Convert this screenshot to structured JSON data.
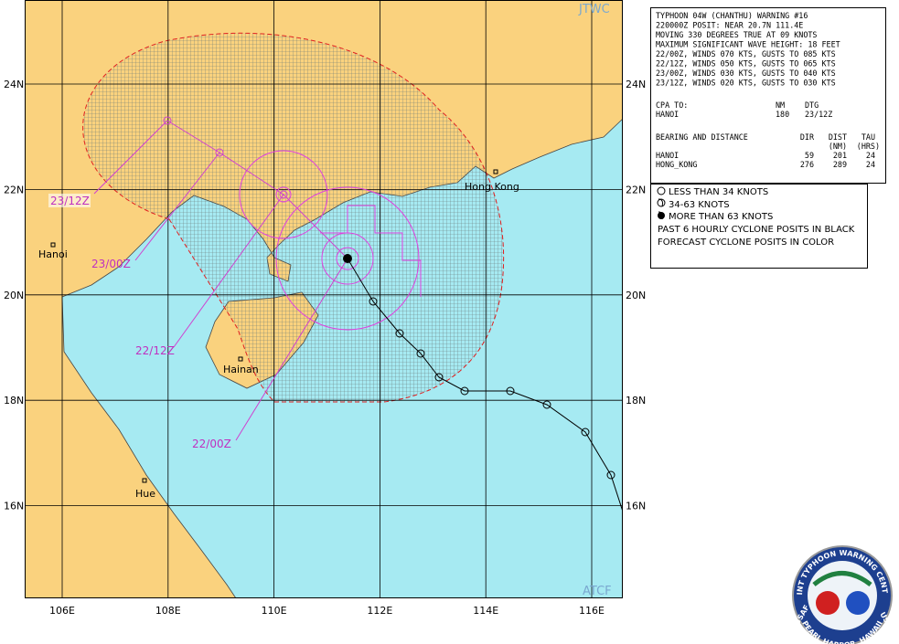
{
  "header": {
    "left_mark": "JTWC",
    "bottom_mark": "ATCF"
  },
  "grid": {
    "lats": [
      {
        "value": 24,
        "label": "24N"
      },
      {
        "value": 22,
        "label": "22N"
      },
      {
        "value": 20,
        "label": "20N"
      },
      {
        "value": 18,
        "label": "18N"
      },
      {
        "value": 16,
        "label": "16N"
      }
    ],
    "lons": [
      {
        "value": 106,
        "label": "106E"
      },
      {
        "value": 108,
        "label": "108E"
      },
      {
        "value": 110,
        "label": "110E"
      },
      {
        "value": 112,
        "label": "112E"
      },
      {
        "value": 114,
        "label": "114E"
      },
      {
        "value": 116,
        "label": "116E"
      }
    ]
  },
  "places": {
    "hanoi": "Hanoi",
    "hong_kong": "Hong Kong",
    "hainan": "Hainan",
    "hue": "Hue"
  },
  "forecast_labels": [
    "23/12Z",
    "23/00Z",
    "22/12Z",
    "22/00Z"
  ],
  "warning": {
    "lines": [
      "TYPHOON 04W (CHANTHU) WARNING #16",
      "220000Z POSIT: NEAR 20.7N 111.4E",
      "MOVING 330 DEGREES TRUE AT 09 KNOTS",
      "MAXIMUM SIGNIFICANT WAVE HEIGHT: 18 FEET",
      "22/00Z, WINDS 070 KTS, GUSTS TO 085 KTS",
      "22/12Z, WINDS 050 KTS, GUSTS TO 065 KTS",
      "23/00Z, WINDS 030 KTS, GUSTS TO 040 KTS",
      "23/12Z, WINDS 020 KTS, GUSTS TO 030 KTS"
    ],
    "cpa": {
      "header": [
        "CPA TO:",
        "NM",
        "DTG"
      ],
      "rows": [
        [
          "HANOI",
          180,
          "23/12Z"
        ]
      ]
    },
    "bearing": {
      "header": [
        "BEARING AND DISTANCE",
        "DIR",
        "DIST",
        "TAU"
      ],
      "subheader": [
        "(NM)",
        "(HRS)"
      ],
      "rows": [
        [
          "HANOI",
          59,
          201,
          24
        ],
        [
          "HONG_KONG",
          276,
          289,
          24
        ]
      ]
    }
  },
  "legend": [
    "LESS THAN 34 KNOTS",
    "34-63 KNOTS",
    "MORE THAN 63 KNOTS",
    "PAST 6 HOURLY CYCLONE POSITS IN BLACK",
    "FORECAST CYCLONE POSITS IN COLOR"
  ],
  "seal": {
    "ring": "JOINT TYPHOON WARNING CENTER",
    "left": "USAF",
    "right": "USN",
    "bottom": "PEARL HARBOR, HAWAII"
  }
}
